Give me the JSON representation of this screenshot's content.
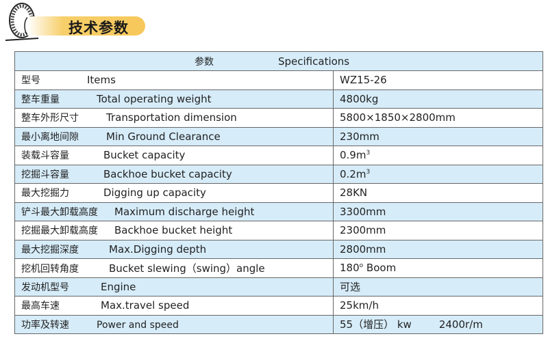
{
  "section_title": "技术参数",
  "header": {
    "cn": "参数",
    "en": "Specifications"
  },
  "rows": [
    {
      "cn": "型号",
      "en": "Items",
      "value": "WZ15-26",
      "sup": "",
      "suffix": ""
    },
    {
      "cn": "整车重量",
      "en": "Total operating weight",
      "value": "4800kg",
      "sup": "",
      "suffix": ""
    },
    {
      "cn": "整车外形尺寸",
      "en": "Transportation dimension",
      "value": "5800×1850×2800mm",
      "sup": "",
      "suffix": ""
    },
    {
      "cn": "最小离地间隙",
      "en": "Min Ground Clearance",
      "value": "230mm",
      "sup": "",
      "suffix": ""
    },
    {
      "cn": "装载斗容量",
      "en": "Bucket capacity",
      "value": "0.9m",
      "sup": "3",
      "suffix": ""
    },
    {
      "cn": "挖掘斗容量",
      "en": "Backhoe bucket capacity",
      "value": "0.2m",
      "sup": "3",
      "suffix": ""
    },
    {
      "cn": "最大挖掘力",
      "en": "Digging up capacity",
      "value": "28KN",
      "sup": "",
      "suffix": ""
    },
    {
      "cn": "铲斗最大卸载高度",
      "en": "Maximum discharge height",
      "value": "3300mm",
      "sup": "",
      "suffix": ""
    },
    {
      "cn": "挖掘最大卸载高度",
      "en": "Backhoe bucket height",
      "value": "2300mm",
      "sup": "",
      "suffix": ""
    },
    {
      "cn": "最大挖掘深度",
      "en": "Max.Digging depth",
      "value": "2800mm",
      "sup": "",
      "suffix": ""
    },
    {
      "cn": "挖机回转角度",
      "en": "Bucket slewing（swing）angle",
      "value": "180",
      "sup": "o",
      "suffix": " Boom"
    },
    {
      "cn": "发动机型号",
      "en": "Engine",
      "value": "可选",
      "sup": "",
      "suffix": ""
    },
    {
      "cn": "最高车速",
      "en": "Max.travel speed",
      "value": "25km/h",
      "sup": "",
      "suffix": ""
    },
    {
      "cn": "功率及转速",
      "en": "Power and speed",
      "value": "55（增压） kw",
      "sup": "",
      "suffix": "2400r/m"
    }
  ]
}
